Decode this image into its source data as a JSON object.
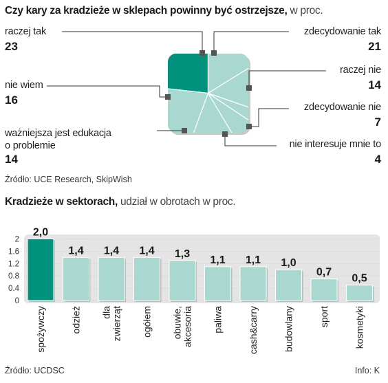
{
  "pie": {
    "title_bold": "Czy kary za kradzieże w sklepach powinny być ostrzejsze,",
    "title_light": " w proc.",
    "labels": [
      {
        "label": "raczej tak",
        "value": "23"
      },
      {
        "label": "zdecydowanie tak",
        "value": "21"
      },
      {
        "label": "raczej nie",
        "value": "14"
      },
      {
        "label": "zdecydowanie nie",
        "value": "7"
      },
      {
        "label": "nie interesuje mnie to",
        "value": "4"
      },
      {
        "label": "ważniejsza jest edukacja",
        "label2": "o problemie",
        "value": "14"
      },
      {
        "label": "nie wiem",
        "value": "16"
      }
    ],
    "source": "Źródło: UCE Research, SkipWish"
  },
  "bar": {
    "title_bold": "Kradzieże w sektorach,",
    "title_light": " udział w obrotach w proc.",
    "source": "Źródło: UCDSC",
    "info": "Info: K"
  },
  "colors": {
    "accent": "#00927c",
    "light": "#a8d8cf",
    "border": "#d0d0d0",
    "marker": "#555555"
  },
  "chart_data": [
    {
      "type": "pie",
      "title": "Czy kary za kradzieże w sklepach powinny być ostrzejsze, w proc.",
      "slices": [
        {
          "name": "raczej tak",
          "value": 23,
          "highlight": true
        },
        {
          "name": "zdecydowanie tak",
          "value": 21
        },
        {
          "name": "raczej nie",
          "value": 14
        },
        {
          "name": "zdecydowanie nie",
          "value": 7
        },
        {
          "name": "nie interesuje mnie to",
          "value": 4
        },
        {
          "name": "ważniejsza jest edukacja o problemie",
          "value": 14
        },
        {
          "name": "nie wiem",
          "value": 16
        }
      ]
    },
    {
      "type": "bar",
      "title": "Kradzieże w sektorach, udział w obrotach w proc.",
      "categories": [
        "spożywczy",
        "odzież",
        "dla zwierząt",
        "ogółem",
        "obuwie, akcesoria",
        "paliwa",
        "cash&carry",
        "budowlany",
        "sport",
        "kosmetyki"
      ],
      "category_lines": [
        [
          "spożywczy"
        ],
        [
          "odzież"
        ],
        [
          "dla",
          "zwierząt"
        ],
        [
          "ogółem"
        ],
        [
          "obuwie,",
          "akcesoria"
        ],
        [
          "paliwa"
        ],
        [
          "cash&carry"
        ],
        [
          "budowlany"
        ],
        [
          "sport"
        ],
        [
          "kosmetyki"
        ]
      ],
      "values": [
        2.0,
        1.4,
        1.4,
        1.4,
        1.3,
        1.1,
        1.1,
        1.0,
        0.7,
        0.5
      ],
      "value_labels": [
        "2,0",
        "1,4",
        "1,4",
        "1,4",
        "1,3",
        "1,1",
        "1,1",
        "1,0",
        "0,7",
        "0,5"
      ],
      "yticks": [
        "0",
        "0.4",
        "0.8",
        "1.2",
        "1.6",
        "2"
      ],
      "ylim": [
        0,
        2.1
      ],
      "highlight_index": 0
    }
  ]
}
